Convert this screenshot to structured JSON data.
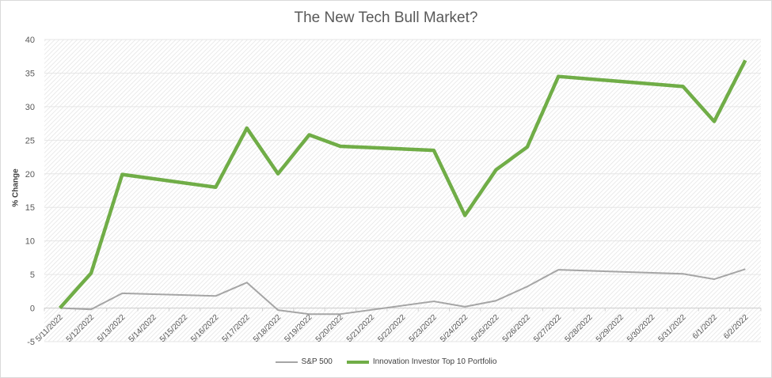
{
  "chart_data": {
    "type": "line",
    "title": "The New Tech Bull Market?",
    "xlabel": "",
    "ylabel": "% Change",
    "ylim": [
      -5,
      40
    ],
    "yticks": [
      -5,
      0,
      5,
      10,
      15,
      20,
      25,
      30,
      35,
      40
    ],
    "grid": true,
    "legend": "bottom",
    "categories": [
      "5/11/2022",
      "5/12/2022",
      "5/13/2022",
      "5/14/2022",
      "5/15/2022",
      "5/16/2022",
      "5/17/2022",
      "5/18/2022",
      "5/19/2022",
      "5/20/2022",
      "5/21/2022",
      "5/22/2022",
      "5/23/2022",
      "5/24/2022",
      "5/25/2022",
      "5/26/2022",
      "5/27/2022",
      "5/28/2022",
      "5/29/2022",
      "5/30/2022",
      "5/31/2022",
      "6/1/2022",
      "6/2/2022"
    ],
    "series": [
      {
        "name": "S&P 500",
        "color": "#a5a5a5",
        "values": [
          0,
          -0.2,
          2.2,
          null,
          null,
          1.8,
          3.8,
          -0.3,
          -0.9,
          -0.9,
          null,
          null,
          1.0,
          0.2,
          1.1,
          3.2,
          5.7,
          null,
          null,
          null,
          5.1,
          4.3,
          5.8
        ]
      },
      {
        "name": "Innovation Investor Top 10 Portfolio",
        "color": "#70ad47",
        "values": [
          0,
          5.2,
          19.9,
          null,
          null,
          18.0,
          26.8,
          20.0,
          25.8,
          24.1,
          null,
          null,
          23.5,
          13.8,
          20.6,
          24.0,
          34.5,
          null,
          null,
          null,
          33.0,
          27.8,
          36.9
        ]
      }
    ]
  }
}
